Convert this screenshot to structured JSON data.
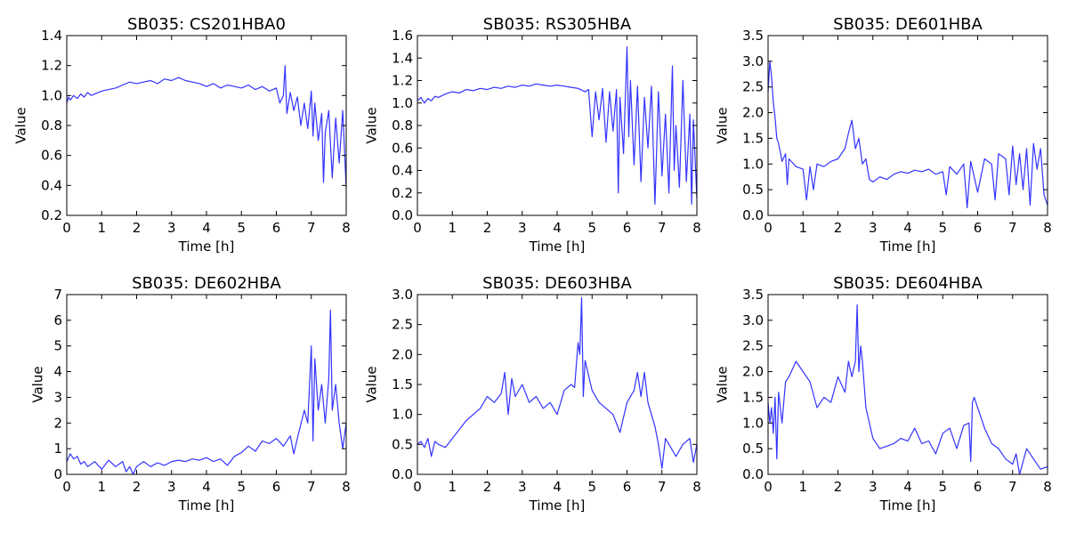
{
  "figure": {
    "line_color": "#3333ff",
    "background": "#ffffff"
  },
  "chart_data": [
    {
      "type": "line",
      "title": "SB035: CS201HBA0",
      "xlabel": "Time [h]",
      "ylabel": "Value",
      "xlim": [
        0,
        8
      ],
      "ylim": [
        0.2,
        1.4
      ],
      "xticks": [
        0,
        1,
        2,
        3,
        4,
        5,
        6,
        7,
        8
      ],
      "yticks": [
        0.2,
        0.4,
        0.6,
        0.8,
        1.0,
        1.2,
        1.4
      ],
      "ytick_labels": [
        "0.2",
        "0.4",
        "0.6",
        "0.8",
        "1.0",
        "1.2",
        "1.4"
      ],
      "grid": false,
      "series": [
        {
          "x": [
            0,
            0.05,
            0.1,
            0.2,
            0.3,
            0.4,
            0.5,
            0.6,
            0.7,
            0.8,
            1.0,
            1.2,
            1.4,
            1.6,
            1.8,
            2.0,
            2.2,
            2.4,
            2.6,
            2.8,
            3.0,
            3.2,
            3.4,
            3.6,
            3.8,
            4.0,
            4.2,
            4.4,
            4.6,
            4.8,
            5.0,
            5.2,
            5.4,
            5.6,
            5.8,
            6.0,
            6.1,
            6.2,
            6.25,
            6.3,
            6.4,
            6.5,
            6.6,
            6.7,
            6.8,
            6.9,
            7.0,
            7.05,
            7.1,
            7.2,
            7.3,
            7.35,
            7.4,
            7.5,
            7.6,
            7.7,
            7.8,
            7.9,
            8.0
          ],
          "y": [
            0.95,
            0.99,
            0.97,
            1.0,
            0.98,
            1.01,
            0.99,
            1.02,
            1.0,
            1.01,
            1.03,
            1.04,
            1.05,
            1.07,
            1.09,
            1.08,
            1.09,
            1.1,
            1.08,
            1.11,
            1.1,
            1.12,
            1.1,
            1.09,
            1.08,
            1.06,
            1.08,
            1.05,
            1.07,
            1.06,
            1.05,
            1.07,
            1.04,
            1.06,
            1.03,
            1.05,
            0.95,
            1.0,
            1.2,
            0.88,
            1.02,
            0.9,
            0.99,
            0.8,
            0.95,
            0.78,
            1.03,
            0.73,
            0.95,
            0.7,
            0.88,
            0.42,
            0.75,
            0.9,
            0.45,
            0.85,
            0.55,
            0.9,
            0.38
          ]
        }
      ]
    },
    {
      "type": "line",
      "title": "SB035: RS305HBA",
      "xlabel": "Time [h]",
      "ylabel": "Value",
      "xlim": [
        0,
        8
      ],
      "ylim": [
        0.0,
        1.6
      ],
      "xticks": [
        0,
        1,
        2,
        3,
        4,
        5,
        6,
        7,
        8
      ],
      "yticks": [
        0.0,
        0.2,
        0.4,
        0.6,
        0.8,
        1.0,
        1.2,
        1.4,
        1.6
      ],
      "ytick_labels": [
        "0.0",
        "0.2",
        "0.4",
        "0.6",
        "0.8",
        "1.0",
        "1.2",
        "1.4",
        "1.6"
      ],
      "grid": false,
      "series": [
        {
          "x": [
            0,
            0.1,
            0.2,
            0.3,
            0.4,
            0.5,
            0.6,
            0.8,
            1.0,
            1.2,
            1.4,
            1.6,
            1.8,
            2.0,
            2.2,
            2.4,
            2.6,
            2.8,
            3.0,
            3.2,
            3.4,
            3.6,
            3.8,
            4.0,
            4.2,
            4.4,
            4.6,
            4.8,
            4.9,
            5.0,
            5.1,
            5.2,
            5.3,
            5.4,
            5.5,
            5.6,
            5.7,
            5.75,
            5.8,
            5.9,
            6.0,
            6.05,
            6.1,
            6.2,
            6.3,
            6.4,
            6.5,
            6.6,
            6.7,
            6.8,
            6.9,
            7.0,
            7.1,
            7.2,
            7.3,
            7.35,
            7.4,
            7.5,
            7.6,
            7.7,
            7.8,
            7.85,
            7.9,
            8.0
          ],
          "y": [
            1.02,
            1.05,
            1.0,
            1.04,
            1.02,
            1.06,
            1.05,
            1.08,
            1.1,
            1.09,
            1.12,
            1.11,
            1.13,
            1.12,
            1.14,
            1.13,
            1.15,
            1.14,
            1.16,
            1.15,
            1.17,
            1.16,
            1.15,
            1.16,
            1.15,
            1.14,
            1.13,
            1.1,
            1.12,
            0.7,
            1.1,
            0.85,
            1.13,
            0.65,
            1.1,
            0.75,
            1.12,
            0.2,
            1.05,
            0.55,
            1.5,
            0.7,
            1.2,
            0.45,
            1.15,
            0.3,
            1.05,
            0.6,
            1.15,
            0.1,
            1.1,
            0.35,
            0.9,
            0.2,
            1.33,
            0.4,
            0.8,
            0.25,
            1.2,
            0.3,
            0.9,
            0.1,
            0.85,
            0.15
          ]
        }
      ]
    },
    {
      "type": "line",
      "title": "SB035: DE601HBA",
      "xlabel": "Time [h]",
      "ylabel": "Value",
      "xlim": [
        0,
        8
      ],
      "ylim": [
        0.0,
        3.5
      ],
      "xticks": [
        0,
        1,
        2,
        3,
        4,
        5,
        6,
        7,
        8
      ],
      "yticks": [
        0.0,
        0.5,
        1.0,
        1.5,
        2.0,
        2.5,
        3.0,
        3.5
      ],
      "ytick_labels": [
        "0.0",
        "0.5",
        "1.0",
        "1.5",
        "2.0",
        "2.5",
        "3.0",
        "3.5"
      ],
      "grid": false,
      "series": [
        {
          "x": [
            0,
            0.05,
            0.1,
            0.15,
            0.2,
            0.25,
            0.3,
            0.4,
            0.5,
            0.55,
            0.6,
            0.8,
            1.0,
            1.1,
            1.2,
            1.3,
            1.4,
            1.6,
            1.8,
            2.0,
            2.2,
            2.3,
            2.4,
            2.5,
            2.6,
            2.7,
            2.8,
            2.9,
            3.0,
            3.2,
            3.4,
            3.6,
            3.8,
            4.0,
            4.2,
            4.4,
            4.6,
            4.8,
            5.0,
            5.1,
            5.2,
            5.4,
            5.6,
            5.7,
            5.8,
            6.0,
            6.2,
            6.4,
            6.5,
            6.6,
            6.8,
            6.9,
            7.0,
            7.1,
            7.2,
            7.3,
            7.4,
            7.5,
            7.6,
            7.7,
            7.8,
            7.9,
            8.0
          ],
          "y": [
            2.4,
            3.0,
            2.7,
            2.2,
            1.9,
            1.5,
            1.4,
            1.05,
            1.2,
            0.6,
            1.1,
            0.95,
            0.9,
            0.3,
            0.95,
            0.5,
            1.0,
            0.95,
            1.05,
            1.1,
            1.3,
            1.6,
            1.85,
            1.3,
            1.5,
            1.0,
            1.1,
            0.7,
            0.65,
            0.75,
            0.7,
            0.8,
            0.85,
            0.82,
            0.88,
            0.85,
            0.9,
            0.8,
            0.85,
            0.4,
            0.95,
            0.8,
            1.0,
            0.15,
            1.05,
            0.45,
            1.1,
            1.0,
            0.3,
            1.2,
            1.1,
            0.4,
            1.35,
            0.6,
            1.2,
            0.5,
            1.3,
            0.2,
            1.4,
            0.9,
            1.3,
            0.4,
            0.2
          ]
        }
      ]
    },
    {
      "type": "line",
      "title": "SB035: DE602HBA",
      "xlabel": "Time [h]",
      "ylabel": "Value",
      "xlim": [
        0,
        8
      ],
      "ylim": [
        0,
        7
      ],
      "xticks": [
        0,
        1,
        2,
        3,
        4,
        5,
        6,
        7,
        8
      ],
      "yticks": [
        0,
        1,
        2,
        3,
        4,
        5,
        6,
        7
      ],
      "ytick_labels": [
        "0",
        "1",
        "2",
        "3",
        "4",
        "5",
        "6",
        "7"
      ],
      "grid": false,
      "series": [
        {
          "x": [
            0,
            0.1,
            0.2,
            0.3,
            0.4,
            0.5,
            0.6,
            0.8,
            1.0,
            1.2,
            1.4,
            1.6,
            1.7,
            1.8,
            1.9,
            2.0,
            2.2,
            2.4,
            2.6,
            2.8,
            3.0,
            3.2,
            3.4,
            3.6,
            3.8,
            4.0,
            4.2,
            4.4,
            4.6,
            4.8,
            5.0,
            5.2,
            5.4,
            5.6,
            5.8,
            6.0,
            6.2,
            6.4,
            6.5,
            6.6,
            6.8,
            6.9,
            7.0,
            7.05,
            7.1,
            7.2,
            7.3,
            7.4,
            7.5,
            7.55,
            7.6,
            7.7,
            7.8,
            7.9,
            8.0
          ],
          "y": [
            0.5,
            0.8,
            0.6,
            0.7,
            0.4,
            0.5,
            0.3,
            0.5,
            0.2,
            0.55,
            0.3,
            0.5,
            0.1,
            0.3,
            0.0,
            0.3,
            0.5,
            0.3,
            0.45,
            0.35,
            0.5,
            0.55,
            0.5,
            0.6,
            0.55,
            0.65,
            0.5,
            0.6,
            0.35,
            0.7,
            0.85,
            1.1,
            0.9,
            1.3,
            1.2,
            1.4,
            1.1,
            1.5,
            0.8,
            1.4,
            2.5,
            2.0,
            5.0,
            1.3,
            4.5,
            2.5,
            3.5,
            2.0,
            3.7,
            6.4,
            2.5,
            3.5,
            2.0,
            1.0,
            2.0
          ]
        }
      ]
    },
    {
      "type": "line",
      "title": "SB035: DE603HBA",
      "xlabel": "Time [h]",
      "ylabel": "Value",
      "xlim": [
        0,
        8
      ],
      "ylim": [
        0.0,
        3.0
      ],
      "xticks": [
        0,
        1,
        2,
        3,
        4,
        5,
        6,
        7,
        8
      ],
      "yticks": [
        0.0,
        0.5,
        1.0,
        1.5,
        2.0,
        2.5,
        3.0
      ],
      "ytick_labels": [
        "0.0",
        "0.5",
        "1.0",
        "1.5",
        "2.0",
        "2.5",
        "3.0"
      ],
      "grid": false,
      "series": [
        {
          "x": [
            0,
            0.1,
            0.2,
            0.3,
            0.4,
            0.5,
            0.6,
            0.8,
            1.0,
            1.2,
            1.4,
            1.6,
            1.8,
            2.0,
            2.2,
            2.4,
            2.5,
            2.6,
            2.7,
            2.8,
            3.0,
            3.2,
            3.4,
            3.6,
            3.8,
            4.0,
            4.2,
            4.4,
            4.5,
            4.6,
            4.65,
            4.7,
            4.75,
            4.8,
            5.0,
            5.2,
            5.4,
            5.6,
            5.8,
            6.0,
            6.2,
            6.3,
            6.4,
            6.5,
            6.6,
            6.8,
            6.9,
            7.0,
            7.1,
            7.2,
            7.4,
            7.6,
            7.8,
            7.9,
            8.0
          ],
          "y": [
            0.5,
            0.55,
            0.45,
            0.6,
            0.3,
            0.55,
            0.5,
            0.45,
            0.6,
            0.75,
            0.9,
            1.0,
            1.1,
            1.3,
            1.2,
            1.35,
            1.7,
            1.0,
            1.6,
            1.3,
            1.5,
            1.2,
            1.3,
            1.1,
            1.2,
            1.0,
            1.4,
            1.5,
            1.45,
            2.2,
            2.0,
            2.95,
            1.3,
            1.9,
            1.4,
            1.2,
            1.1,
            1.0,
            0.7,
            1.2,
            1.4,
            1.7,
            1.3,
            1.7,
            1.2,
            0.8,
            0.5,
            0.1,
            0.6,
            0.5,
            0.3,
            0.5,
            0.6,
            0.2,
            0.5
          ]
        }
      ]
    },
    {
      "type": "line",
      "title": "SB035: DE604HBA",
      "xlabel": "Time [h]",
      "ylabel": "Value",
      "xlim": [
        0,
        8
      ],
      "ylim": [
        0.0,
        3.5
      ],
      "xticks": [
        0,
        1,
        2,
        3,
        4,
        5,
        6,
        7,
        8
      ],
      "yticks": [
        0.0,
        0.5,
        1.0,
        1.5,
        2.0,
        2.5,
        3.0,
        3.5
      ],
      "ytick_labels": [
        "0.0",
        "0.5",
        "1.0",
        "1.5",
        "2.0",
        "2.5",
        "3.0",
        "3.5"
      ],
      "grid": false,
      "series": [
        {
          "x": [
            0,
            0.05,
            0.1,
            0.15,
            0.2,
            0.25,
            0.3,
            0.4,
            0.5,
            0.6,
            0.8,
            1.0,
            1.2,
            1.4,
            1.6,
            1.8,
            2.0,
            2.2,
            2.3,
            2.4,
            2.5,
            2.55,
            2.6,
            2.65,
            2.7,
            2.8,
            3.0,
            3.2,
            3.4,
            3.6,
            3.8,
            4.0,
            4.2,
            4.4,
            4.6,
            4.8,
            5.0,
            5.2,
            5.4,
            5.6,
            5.75,
            5.8,
            5.85,
            5.9,
            6.0,
            6.2,
            6.4,
            6.6,
            6.8,
            7.0,
            7.1,
            7.2,
            7.4,
            7.6,
            7.8,
            8.0
          ],
          "y": [
            1.4,
            1.0,
            1.3,
            0.8,
            1.5,
            0.3,
            1.6,
            1.0,
            1.8,
            1.9,
            2.2,
            2.0,
            1.8,
            1.3,
            1.5,
            1.4,
            1.9,
            1.6,
            2.2,
            1.9,
            2.2,
            3.3,
            2.0,
            2.5,
            2.2,
            1.3,
            0.7,
            0.5,
            0.55,
            0.6,
            0.7,
            0.65,
            0.9,
            0.6,
            0.65,
            0.4,
            0.8,
            0.9,
            0.5,
            0.95,
            1.0,
            0.25,
            1.4,
            1.5,
            1.3,
            0.9,
            0.6,
            0.5,
            0.3,
            0.2,
            0.4,
            0.0,
            0.5,
            0.3,
            0.1,
            0.15
          ]
        }
      ]
    }
  ]
}
